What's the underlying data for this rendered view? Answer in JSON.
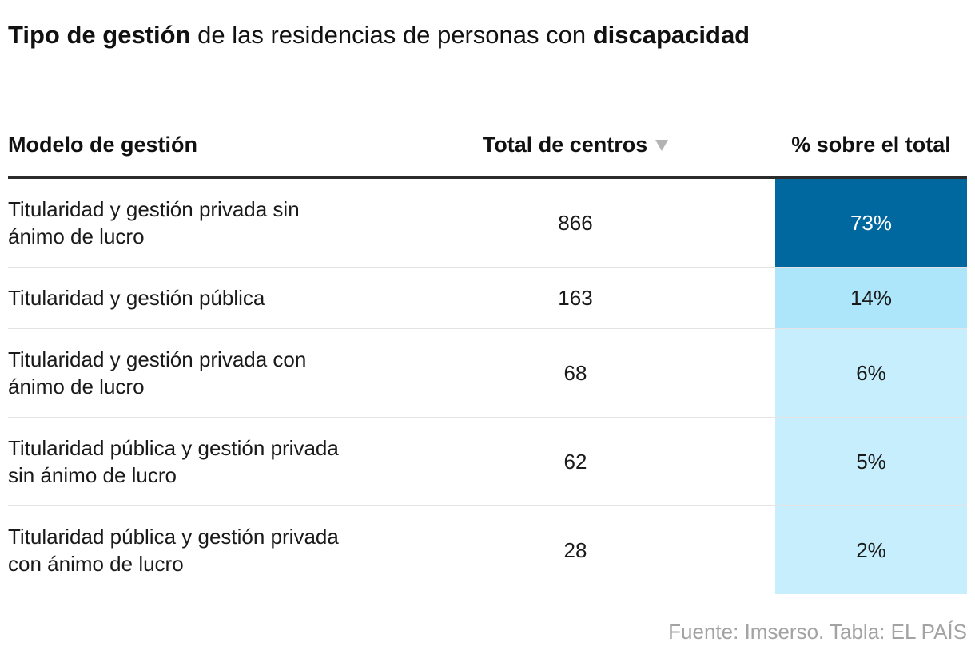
{
  "title": {
    "bold1": "Tipo de gestión",
    "mid": " de las residencias de personas con ",
    "bold2": "discapacidad"
  },
  "headers": {
    "model": "Modelo de gestión",
    "total": "Total de centros",
    "pct": "% sobre el total"
  },
  "colors": {
    "dark": "#01689f",
    "mid": "#ade5fa",
    "light": "#c6eefc"
  },
  "chart_data": {
    "type": "table",
    "title": "Tipo de gestión de las residencias de personas con discapacidad",
    "columns": [
      "Modelo de gestión",
      "Total de centros",
      "% sobre el total"
    ],
    "sort": "Total de centros descending",
    "rows": [
      {
        "model": "Titularidad y gestión privada sin ánimo de lucro",
        "total": 866,
        "total_label": "866",
        "pct": 73,
        "pct_label": "73%"
      },
      {
        "model": "Titularidad y gestión pública",
        "total": 163,
        "total_label": "163",
        "pct": 14,
        "pct_label": "14%"
      },
      {
        "model": "Titularidad y gestión privada con ánimo de lucro",
        "total": 68,
        "total_label": "68",
        "pct": 6,
        "pct_label": "6%"
      },
      {
        "model": "Titularidad pública y gestión privada sin ánimo de lucro",
        "total": 62,
        "total_label": "62",
        "pct": 5,
        "pct_label": "5%"
      },
      {
        "model": "Titularidad pública y gestión privada con ánimo de lucro",
        "total": 28,
        "total_label": "28",
        "pct": 2,
        "pct_label": "2%"
      }
    ]
  },
  "source": "Fuente: Imserso. Tabla: EL PAÍS"
}
